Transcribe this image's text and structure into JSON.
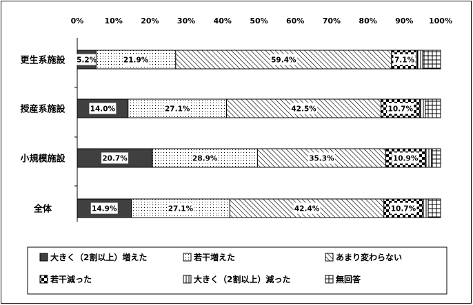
{
  "chart_data": {
    "type": "bar",
    "stacked": true,
    "orientation": "horizontal",
    "xlim": [
      0,
      100
    ],
    "ticks": [
      "0%",
      "10%",
      "20%",
      "30%",
      "40%",
      "50%",
      "60%",
      "70%",
      "80%",
      "90%",
      "100%"
    ],
    "categories": [
      "更生系施設",
      "授産系施設",
      "小規模施設",
      "全体"
    ],
    "series": [
      {
        "name": "大きく（2割以上）増えた",
        "values": [
          5.2,
          14.0,
          20.7,
          14.9
        ],
        "labels": [
          "5.2%",
          "14.0%",
          "20.7%",
          "14.9%"
        ]
      },
      {
        "name": "若干増えた",
        "values": [
          21.9,
          27.1,
          28.9,
          27.1
        ],
        "labels": [
          "21.9%",
          "27.1%",
          "28.9%",
          "27.1%"
        ]
      },
      {
        "name": "あまり変わらない",
        "values": [
          59.4,
          42.5,
          35.3,
          42.4
        ],
        "labels": [
          "59.4%",
          "42.5%",
          "35.3%",
          "42.4%"
        ]
      },
      {
        "name": "若干減った",
        "values": [
          7.1,
          10.7,
          10.9,
          10.7
        ],
        "labels": [
          "7.1%",
          "10.7%",
          "10.9%",
          "10.7%"
        ]
      },
      {
        "name": "大きく（2割以上）減った",
        "values": [
          1.5,
          1.5,
          1.7,
          1.5
        ],
        "labels": [
          "",
          "",
          "",
          ""
        ]
      },
      {
        "name": "無回答",
        "values": [
          4.9,
          4.2,
          2.5,
          3.4
        ],
        "labels": [
          "",
          "",
          "",
          ""
        ]
      }
    ],
    "legend_position": "bottom",
    "grid": false
  }
}
